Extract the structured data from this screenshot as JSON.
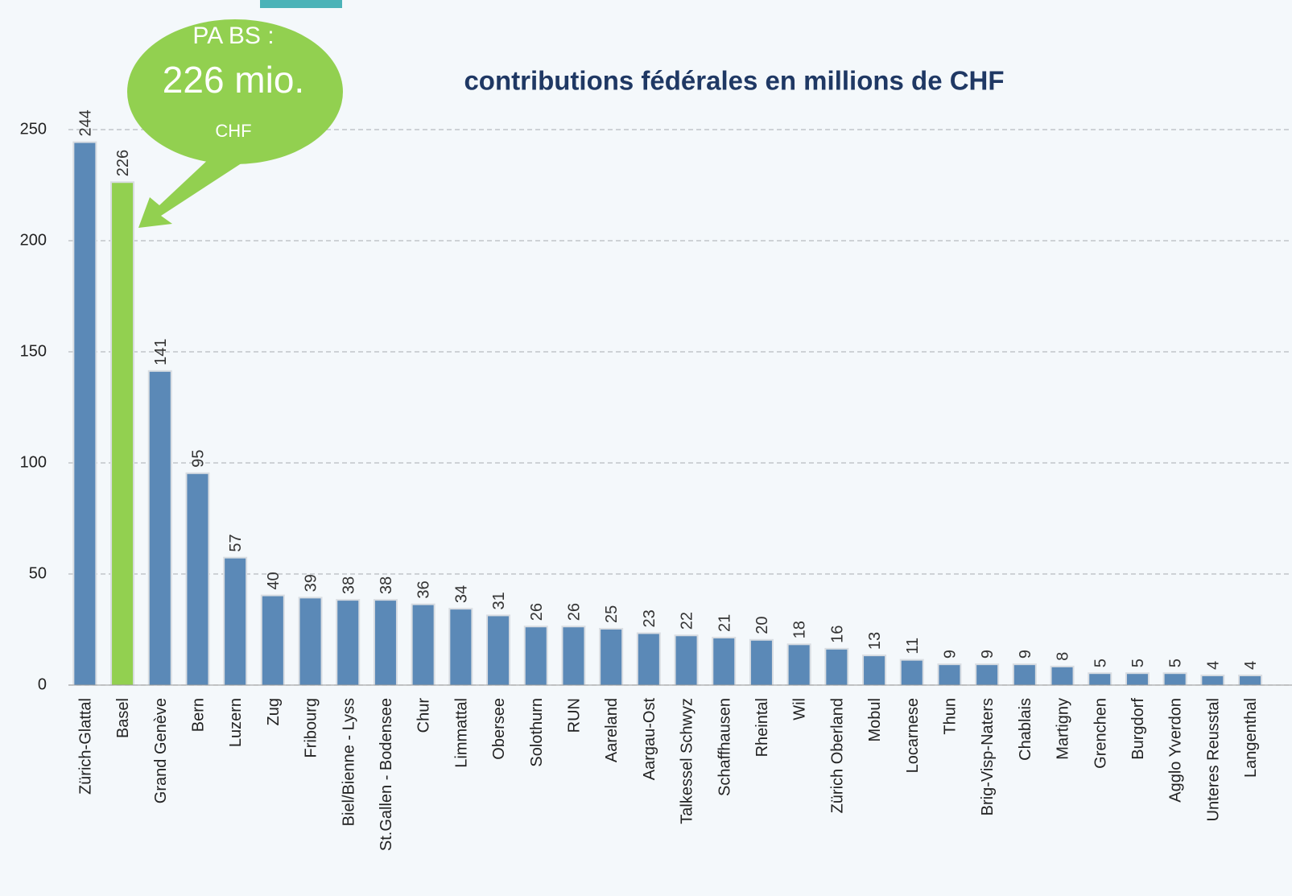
{
  "chart_data": {
    "type": "bar",
    "title": "contributions fédérales en millions de CHF",
    "annotations": [
      "PA BS :",
      "226 mio.",
      "CHF"
    ],
    "categories": [
      "Zürich-Glattal",
      "Basel",
      "Grand Genève",
      "Bern",
      "Luzern",
      "Zug",
      "Fribourg",
      "Biel/Bienne - Lyss",
      "St.Gallen - Bodensee",
      "Chur",
      "Limmattal",
      "Obersee",
      "Solothurn",
      "RUN",
      "Aareland",
      "Aargau-Ost",
      "Talkessel Schwyz",
      "Schaffhausen",
      "Rheintal",
      "Wil",
      "Zürich Oberland",
      "Mobul",
      "Locarnese",
      "Thun",
      "Brig-Visp-Naters",
      "Chablais",
      "Martigny",
      "Grenchen",
      "Burgdorf",
      "Agglo Yverdon",
      "Unteres Reusstal",
      "Langenthal"
    ],
    "values": [
      244,
      226,
      141,
      95,
      57,
      40,
      39,
      38,
      38,
      36,
      34,
      31,
      26,
      26,
      25,
      23,
      22,
      21,
      20,
      18,
      16,
      13,
      11,
      9,
      9,
      9,
      8,
      5,
      5,
      5,
      4,
      4
    ],
    "colors": [
      "#5b89b7",
      "#92d050",
      "#5b89b7",
      "#5b89b7",
      "#5b89b7",
      "#5b89b7",
      "#5b89b7",
      "#5b89b7",
      "#5b89b7",
      "#5b89b7",
      "#5b89b7",
      "#5b89b7",
      "#5b89b7",
      "#5b89b7",
      "#5b89b7",
      "#5b89b7",
      "#5b89b7",
      "#5b89b7",
      "#5b89b7",
      "#5b89b7",
      "#5b89b7",
      "#5b89b7",
      "#5b89b7",
      "#5b89b7",
      "#5b89b7",
      "#5b89b7",
      "#5b89b7",
      "#5b89b7",
      "#5b89b7",
      "#5b89b7",
      "#5b89b7",
      "#5b89b7"
    ],
    "ylim": [
      0,
      250
    ],
    "yticks": [
      0,
      50,
      100,
      150,
      200,
      250
    ],
    "grid": true
  }
}
